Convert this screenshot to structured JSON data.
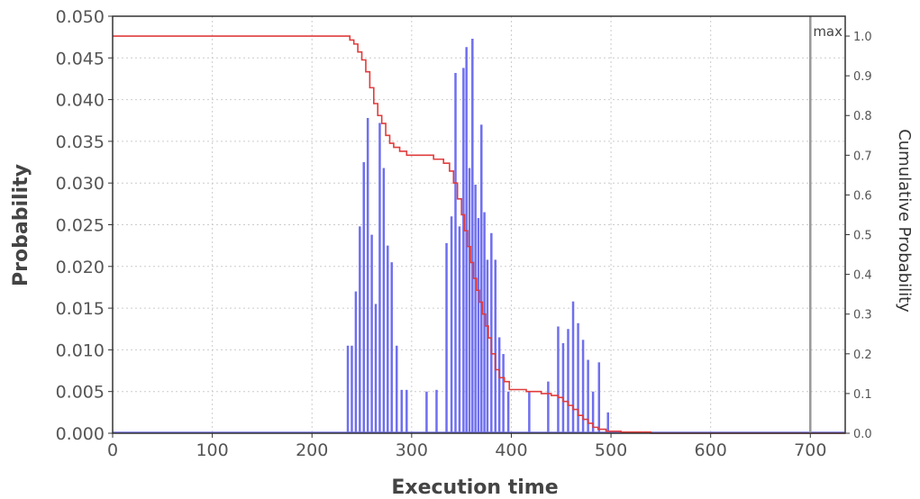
{
  "chart_data": {
    "type": "bar",
    "xlabel": "Execution time",
    "ylabel": "Probability",
    "y2label": "Cumulative Probability",
    "xlim": [
      0,
      735
    ],
    "ylim": [
      0,
      0.05
    ],
    "y2lim": [
      0,
      1.05
    ],
    "x_ticks": [
      "0",
      "100",
      "200",
      "300",
      "400",
      "500",
      "600",
      "700"
    ],
    "y_ticks": [
      "0.000",
      "0.005",
      "0.010",
      "0.015",
      "0.020",
      "0.025",
      "0.030",
      "0.035",
      "0.040",
      "0.045",
      "0.050"
    ],
    "y2_ticks": [
      "0.0",
      "0.1",
      "0.2",
      "0.3",
      "0.4",
      "0.5",
      "0.6",
      "0.7",
      "0.8",
      "0.9",
      "1.0"
    ],
    "grid": true,
    "colors": {
      "probability": "#6f6ff0",
      "cumulative": "#e03c3c",
      "marker": "#999999"
    },
    "marker": {
      "label": "max",
      "x": 700
    },
    "probability": {
      "x": [
        236,
        240,
        244,
        248,
        252,
        256,
        260,
        264,
        268,
        272,
        276,
        280,
        285,
        290,
        295,
        315,
        325,
        335,
        340,
        344,
        348,
        352,
        355,
        358,
        361,
        364,
        367,
        370,
        373,
        376,
        380,
        384,
        388,
        392,
        397,
        418,
        437,
        447,
        452,
        457,
        462,
        467,
        472,
        477,
        482,
        488,
        497
      ],
      "y": [
        0.0105,
        0.0105,
        0.017,
        0.0248,
        0.0325,
        0.0378,
        0.0238,
        0.0155,
        0.0372,
        0.0318,
        0.0225,
        0.0205,
        0.0105,
        0.0052,
        0.0052,
        0.005,
        0.0052,
        0.0228,
        0.026,
        0.0432,
        0.0248,
        0.0438,
        0.0463,
        0.0318,
        0.0473,
        0.0298,
        0.0258,
        0.037,
        0.0265,
        0.0208,
        0.024,
        0.0208,
        0.0115,
        0.0095,
        0.005,
        0.005,
        0.0062,
        0.0128,
        0.0108,
        0.0125,
        0.0158,
        0.0132,
        0.0112,
        0.0088,
        0.005,
        0.0085,
        0.0025
      ]
    },
    "cumulative": {
      "x": [
        0,
        234,
        238,
        242,
        246,
        250,
        254,
        258,
        262,
        266,
        270,
        274,
        278,
        282,
        288,
        295,
        310,
        322,
        332,
        338,
        342,
        346,
        350,
        353,
        356,
        359,
        362,
        365,
        368,
        371,
        374,
        377,
        380,
        384,
        388,
        393,
        398,
        415,
        430,
        440,
        447,
        452,
        457,
        462,
        467,
        472,
        477,
        482,
        487,
        495,
        510,
        540
      ],
      "y": [
        1.0,
        1.0,
        0.99,
        0.98,
        0.96,
        0.94,
        0.91,
        0.87,
        0.83,
        0.8,
        0.78,
        0.75,
        0.73,
        0.72,
        0.71,
        0.7,
        0.7,
        0.69,
        0.68,
        0.66,
        0.63,
        0.59,
        0.55,
        0.51,
        0.47,
        0.43,
        0.39,
        0.36,
        0.33,
        0.3,
        0.27,
        0.24,
        0.2,
        0.16,
        0.14,
        0.13,
        0.11,
        0.105,
        0.1,
        0.095,
        0.09,
        0.08,
        0.07,
        0.06,
        0.045,
        0.035,
        0.025,
        0.015,
        0.01,
        0.005,
        0.003,
        0.0
      ]
    }
  }
}
